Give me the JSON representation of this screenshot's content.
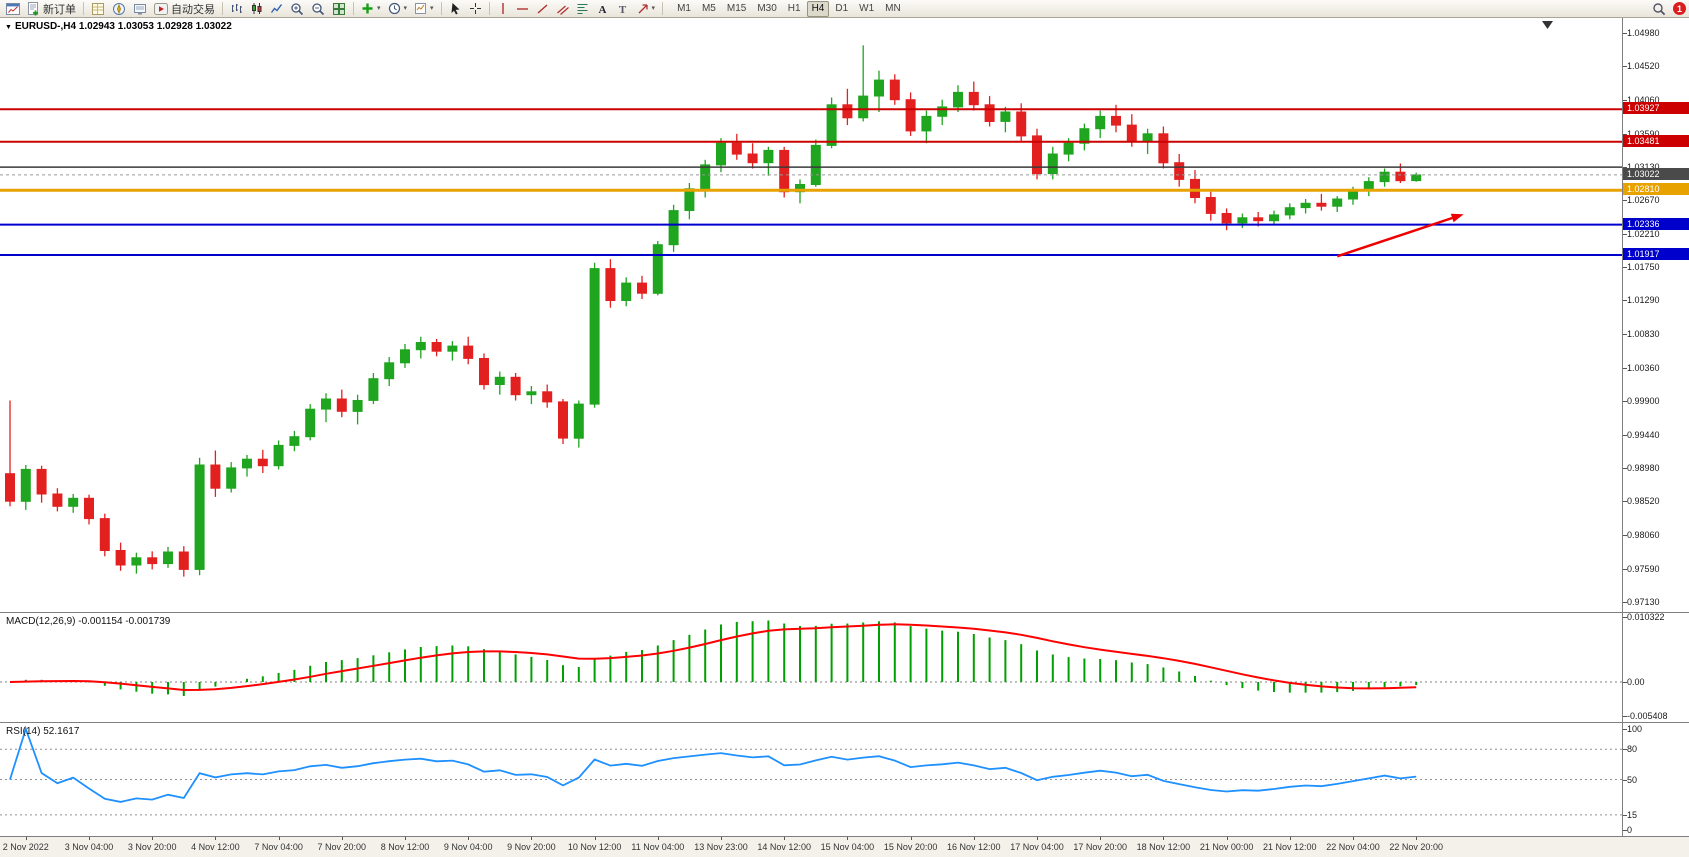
{
  "toolbar": {
    "buttons": {
      "new_order": "新订单",
      "autotrading": "自动交易"
    },
    "timeframes": [
      "M1",
      "M5",
      "M15",
      "M30",
      "H1",
      "H4",
      "D1",
      "W1",
      "MN"
    ],
    "active_timeframe": "H4",
    "notification_badge": "1"
  },
  "chart": {
    "symbol_period": "EURUSD-,H4",
    "ohlc": "1.02943 1.03053 1.02928 1.03022"
  },
  "indicators": {
    "macd": {
      "label": "MACD(12,26,9)",
      "values": "-0.001154 -0.001739",
      "scale": [
        "0.010322",
        "0.00",
        "-0.005408"
      ]
    },
    "rsi": {
      "label": "RSI(14)",
      "value": "52.1617",
      "scale": [
        "100",
        "80",
        "50",
        "15",
        "0"
      ],
      "levels": [
        80,
        50,
        15
      ]
    }
  },
  "chart_data": {
    "type": "candlestick",
    "symbol": "EURUSD",
    "timeframe": "H4",
    "price_axis_labels": [
      "1.04980",
      "1.04520",
      "1.04060",
      "1.03590",
      "1.03130",
      "1.02670",
      "1.02210",
      "1.01750",
      "1.01290",
      "1.00830",
      "1.00360",
      "0.99900",
      "0.99440",
      "0.98980",
      "0.98520",
      "0.98060",
      "0.97590",
      "0.97130"
    ],
    "hlines": [
      {
        "price": 1.03927,
        "color": "#cc0000",
        "width": 2,
        "label": "1.03927"
      },
      {
        "price": 1.03481,
        "color": "#cc0000",
        "width": 2,
        "label": "1.03481"
      },
      {
        "price": 1.0313,
        "color": "#3a3a3a",
        "width": 1.5,
        "label": null
      },
      {
        "price": 1.0281,
        "color": "#e8a200",
        "width": 3,
        "label": "1.02810"
      },
      {
        "price": 1.02336,
        "color": "#0000cc",
        "width": 2,
        "label": "1.02336"
      },
      {
        "price": 1.01917,
        "color": "#0000cc",
        "width": 2,
        "label": "1.01917"
      }
    ],
    "bid": {
      "price": 1.03022,
      "label": "1.03022",
      "box_color": "#4a4a4a"
    },
    "arrow": {
      "from": {
        "bar": 84,
        "price": 1.019
      },
      "to": {
        "bar": 92,
        "price": 1.0248
      },
      "color": "#ee0000"
    },
    "colors": {
      "up": "#1fa51f",
      "down": "#e32020",
      "macd_hist": "#00a000",
      "macd_signal": "#ff0000",
      "rsi": "#1e90ff"
    },
    "macd_scale": {
      "max": 0.010322,
      "min": -0.005408
    },
    "time_labels": [
      {
        "bar": 1,
        "text": "2 Nov 2022"
      },
      {
        "bar": 5,
        "text": "3 Nov 04:00"
      },
      {
        "bar": 9,
        "text": "3 Nov 20:00"
      },
      {
        "bar": 13,
        "text": "4 Nov 12:00"
      },
      {
        "bar": 17,
        "text": "7 Nov 04:00"
      },
      {
        "bar": 21,
        "text": "7 Nov 20:00"
      },
      {
        "bar": 25,
        "text": "8 Nov 12:00"
      },
      {
        "bar": 29,
        "text": "9 Nov 04:00"
      },
      {
        "bar": 33,
        "text": "9 Nov 20:00"
      },
      {
        "bar": 37,
        "text": "10 Nov 12:00"
      },
      {
        "bar": 41,
        "text": "11 Nov 04:00"
      },
      {
        "bar": 45,
        "text": "13 Nov 23:00"
      },
      {
        "bar": 49,
        "text": "14 Nov 12:00"
      },
      {
        "bar": 53,
        "text": "15 Nov 04:00"
      },
      {
        "bar": 57,
        "text": "15 Nov 20:00"
      },
      {
        "bar": 61,
        "text": "16 Nov 12:00"
      },
      {
        "bar": 65,
        "text": "17 Nov 04:00"
      },
      {
        "bar": 69,
        "text": "17 Nov 20:00"
      },
      {
        "bar": 73,
        "text": "18 Nov 12:00"
      },
      {
        "bar": 77,
        "text": "21 Nov 00:00"
      },
      {
        "bar": 81,
        "text": "21 Nov 12:00"
      },
      {
        "bar": 85,
        "text": "22 Nov 04:00"
      },
      {
        "bar": 89,
        "text": "22 Nov 20:00"
      }
    ],
    "candles": [
      [
        0.989,
        0.9991,
        0.9845,
        0.9852
      ],
      [
        0.9852,
        0.9902,
        0.984,
        0.9896
      ],
      [
        0.9896,
        0.9901,
        0.985,
        0.9862
      ],
      [
        0.9862,
        0.987,
        0.9838,
        0.9845
      ],
      [
        0.9845,
        0.9862,
        0.9836,
        0.9856
      ],
      [
        0.9856,
        0.9861,
        0.982,
        0.9828
      ],
      [
        0.9828,
        0.9835,
        0.9776,
        0.9784
      ],
      [
        0.9784,
        0.9795,
        0.9756,
        0.9764
      ],
      [
        0.9764,
        0.9781,
        0.9752,
        0.9774
      ],
      [
        0.9774,
        0.9783,
        0.9758,
        0.9766
      ],
      [
        0.9766,
        0.9789,
        0.976,
        0.9782
      ],
      [
        0.9782,
        0.979,
        0.9748,
        0.9758
      ],
      [
        0.9758,
        0.9912,
        0.975,
        0.9902
      ],
      [
        0.9902,
        0.9922,
        0.9858,
        0.987
      ],
      [
        0.987,
        0.9906,
        0.9864,
        0.9898
      ],
      [
        0.9898,
        0.9916,
        0.9886,
        0.991
      ],
      [
        0.991,
        0.9923,
        0.9891,
        0.9901
      ],
      [
        0.9901,
        0.9936,
        0.9896,
        0.9929
      ],
      [
        0.9929,
        0.9949,
        0.9921,
        0.9941
      ],
      [
        0.9941,
        0.9986,
        0.9936,
        0.9979
      ],
      [
        0.9979,
        1.0001,
        0.9961,
        0.9993
      ],
      [
        0.9993,
        1.0006,
        0.9968,
        0.9976
      ],
      [
        0.9976,
        0.9999,
        0.9958,
        0.9991
      ],
      [
        0.9991,
        1.0029,
        0.9986,
        1.0021
      ],
      [
        1.0021,
        1.0051,
        1.0011,
        1.0043
      ],
      [
        1.0043,
        1.0069,
        1.0036,
        1.0061
      ],
      [
        1.0061,
        1.0079,
        1.0049,
        1.0071
      ],
      [
        1.0071,
        1.0076,
        1.0052,
        1.0059
      ],
      [
        1.0059,
        1.0073,
        1.0046,
        1.0066
      ],
      [
        1.0066,
        1.0079,
        1.0041,
        1.0049
      ],
      [
        1.0049,
        1.0056,
        1.0006,
        1.0013
      ],
      [
        1.0013,
        1.0031,
        0.9999,
        1.0023
      ],
      [
        1.0023,
        1.0029,
        0.9991,
        0.9999
      ],
      [
        0.9999,
        1.0011,
        0.9986,
        1.0003
      ],
      [
        1.0003,
        1.0013,
        0.9981,
        0.9989
      ],
      [
        0.9989,
        0.9993,
        0.9931,
        0.9939
      ],
      [
        0.9939,
        0.9991,
        0.9926,
        0.9986
      ],
      [
        0.9986,
        1.0181,
        0.9981,
        1.0173
      ],
      [
        1.0173,
        1.0186,
        1.0119,
        1.0129
      ],
      [
        1.0129,
        1.0161,
        1.0121,
        1.0153
      ],
      [
        1.0153,
        1.0163,
        1.0131,
        1.0139
      ],
      [
        1.0139,
        1.0211,
        1.0136,
        1.0206
      ],
      [
        1.0206,
        1.0261,
        1.0196,
        1.0253
      ],
      [
        1.0253,
        1.0291,
        1.0241,
        1.0283
      ],
      [
        1.0283,
        1.0323,
        1.0271,
        1.0316
      ],
      [
        1.0316,
        1.0353,
        1.0306,
        1.0346
      ],
      [
        1.0346,
        1.0359,
        1.0323,
        1.0331
      ],
      [
        1.0331,
        1.0346,
        1.0311,
        1.0319
      ],
      [
        1.0319,
        1.0341,
        1.0301,
        1.0336
      ],
      [
        1.0336,
        1.0341,
        1.0271,
        1.0279
      ],
      [
        1.0279,
        1.0296,
        1.0263,
        1.0289
      ],
      [
        1.0289,
        1.0351,
        1.0286,
        1.0343
      ],
      [
        1.0343,
        1.0409,
        1.0339,
        1.0399
      ],
      [
        1.0399,
        1.0421,
        1.0371,
        1.0381
      ],
      [
        1.0381,
        1.0481,
        1.0376,
        1.0411
      ],
      [
        1.0411,
        1.0446,
        1.0389,
        1.0433
      ],
      [
        1.0433,
        1.0441,
        1.0399,
        1.0406
      ],
      [
        1.0406,
        1.0416,
        1.0356,
        1.0363
      ],
      [
        1.0363,
        1.0391,
        1.0346,
        1.0383
      ],
      [
        1.0383,
        1.0406,
        1.0371,
        1.0396
      ],
      [
        1.0396,
        1.0426,
        1.0389,
        1.0416
      ],
      [
        1.0416,
        1.0431,
        1.0391,
        1.0399
      ],
      [
        1.0399,
        1.0411,
        1.0369,
        1.0376
      ],
      [
        1.0376,
        1.0396,
        1.0361,
        1.0389
      ],
      [
        1.0389,
        1.0401,
        1.0349,
        1.0356
      ],
      [
        1.0356,
        1.0366,
        1.0296,
        1.0304
      ],
      [
        1.0304,
        1.0341,
        1.0296,
        1.0331
      ],
      [
        1.0331,
        1.0353,
        1.0321,
        1.0346
      ],
      [
        1.0346,
        1.0373,
        1.0336,
        1.0366
      ],
      [
        1.0366,
        1.0391,
        1.0353,
        1.0383
      ],
      [
        1.0383,
        1.0399,
        1.0361,
        1.0371
      ],
      [
        1.0371,
        1.0386,
        1.0341,
        1.0349
      ],
      [
        1.0349,
        1.0366,
        1.0331,
        1.0359
      ],
      [
        1.0359,
        1.0369,
        1.0311,
        1.0319
      ],
      [
        1.0319,
        1.0331,
        1.0286,
        1.0296
      ],
      [
        1.0296,
        1.0309,
        1.0263,
        1.0271
      ],
      [
        1.0271,
        1.0279,
        1.0239,
        1.0249
      ],
      [
        1.0249,
        1.0256,
        1.0226,
        1.0236
      ],
      [
        1.0236,
        1.0249,
        1.0229,
        1.0243
      ],
      [
        1.0243,
        1.0251,
        1.0231,
        1.0239
      ],
      [
        1.0239,
        1.0253,
        1.0233,
        1.0247
      ],
      [
        1.0247,
        1.0263,
        1.0241,
        1.0257
      ],
      [
        1.0257,
        1.0269,
        1.0249,
        1.0263
      ],
      [
        1.0263,
        1.0276,
        1.0253,
        1.0259
      ],
      [
        1.0259,
        1.0273,
        1.0251,
        1.0269
      ],
      [
        1.0269,
        1.0286,
        1.0261,
        1.0281
      ],
      [
        1.0281,
        1.0299,
        1.0273,
        1.0293
      ],
      [
        1.0293,
        1.0311,
        1.0286,
        1.0306
      ],
      [
        1.0306,
        1.0318,
        1.0291,
        1.02943
      ],
      [
        1.02943,
        1.03053,
        1.02928,
        1.03022
      ]
    ]
  }
}
